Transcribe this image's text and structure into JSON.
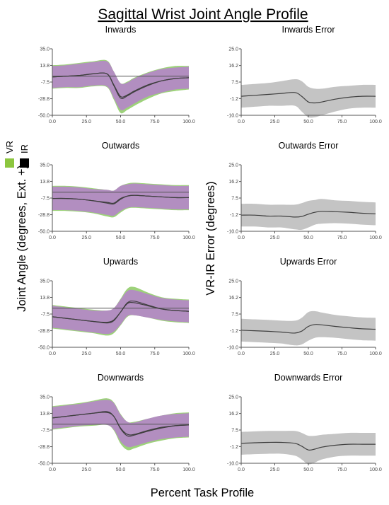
{
  "figure": {
    "title": "Sagittal Wrist Joint Angle Profile",
    "xlabel": "Percent Task Profile",
    "ylabel_left": "Joint Angle (degrees, Ext. +)",
    "ylabel_right": "VR-IR Error (degrees)",
    "legend": [
      {
        "label": "VR",
        "color": "#8cc63f"
      },
      {
        "label": "IR",
        "color": "#000000"
      }
    ]
  },
  "colors": {
    "vr_band": "#9dd27a",
    "ir_band": "#b28ec0",
    "error_band": "#c4c4c4",
    "mean_line": "#3f3f3f",
    "zero_line": "#555555",
    "axis": "#555555"
  },
  "chart_data": [
    {
      "type": "area",
      "title": "Inwards",
      "xlim": [
        0,
        100
      ],
      "ylim": [
        -50,
        35
      ],
      "xticks": [
        "0.0",
        "25.0",
        "50.0",
        "75.0",
        "100.0"
      ],
      "yticks": [
        "35.0",
        "13.8",
        "-7.5",
        "-28.8",
        "-50.0"
      ],
      "x": [
        0,
        10,
        20,
        30,
        40,
        45,
        50,
        55,
        60,
        70,
        80,
        90,
        100
      ],
      "series": [
        {
          "name": "VR",
          "mean": [
            -1,
            0,
            1,
            3,
            3,
            -12,
            -28,
            -25,
            -20,
            -12,
            -6,
            -3,
            -2
          ],
          "sd": [
            15,
            15,
            16,
            16,
            17,
            18,
            19,
            18,
            18,
            17,
            16,
            16,
            15
          ]
        },
        {
          "name": "IR",
          "mean": [
            -1,
            0,
            1,
            3,
            3,
            -11,
            -26,
            -24,
            -19,
            -11,
            -6,
            -3,
            -2
          ],
          "sd": [
            14,
            14,
            15,
            15,
            16,
            17,
            17,
            16,
            16,
            15,
            15,
            14,
            14
          ]
        }
      ]
    },
    {
      "type": "area",
      "title": "Inwards Error",
      "xlim": [
        0,
        100
      ],
      "ylim": [
        -10,
        25
      ],
      "xticks": [
        "0.0",
        "25.0",
        "50.0",
        "75.0",
        "100.0"
      ],
      "yticks": [
        "25.0",
        "16.2",
        "7.5",
        "-1.2",
        "-10.0"
      ],
      "x": [
        0,
        10,
        20,
        30,
        40,
        45,
        50,
        55,
        60,
        70,
        80,
        90,
        100
      ],
      "series": [
        {
          "name": "Error",
          "mean": [
            0,
            0.5,
            1,
            1.5,
            2,
            0,
            -3,
            -3.5,
            -3,
            -1.5,
            -0.5,
            0,
            0
          ],
          "sd": [
            6,
            6,
            6,
            6.5,
            7,
            8,
            8,
            7.5,
            7,
            6.5,
            6,
            6,
            6
          ]
        }
      ]
    },
    {
      "type": "area",
      "title": "Outwards",
      "xlim": [
        0,
        100
      ],
      "ylim": [
        -50,
        35
      ],
      "xticks": [
        "0.0",
        "25.0",
        "50.0",
        "75.0",
        "100.0"
      ],
      "yticks": [
        "35.0",
        "13.8",
        "-7.5",
        "-28.8",
        "-50.0"
      ],
      "x": [
        0,
        10,
        20,
        30,
        40,
        45,
        50,
        55,
        60,
        70,
        80,
        90,
        100
      ],
      "series": [
        {
          "name": "VR",
          "mean": [
            -8,
            -8,
            -9,
            -11,
            -14,
            -15,
            -9,
            -5,
            -4,
            -5,
            -6,
            -7,
            -7
          ],
          "sd": [
            16,
            16,
            16,
            16,
            17,
            17,
            17,
            16,
            16,
            16,
            16,
            16,
            16
          ]
        },
        {
          "name": "IR",
          "mean": [
            -8,
            -8,
            -9,
            -11,
            -13,
            -14,
            -8,
            -5,
            -4,
            -5,
            -6,
            -7,
            -7
          ],
          "sd": [
            15,
            15,
            15,
            15,
            16,
            16,
            16,
            15,
            15,
            15,
            15,
            15,
            15
          ]
        }
      ]
    },
    {
      "type": "area",
      "title": "Outwards Error",
      "xlim": [
        0,
        100
      ],
      "ylim": [
        -10,
        25
      ],
      "xticks": [
        "0.0",
        "25.0",
        "50.0",
        "75.0",
        "100.0"
      ],
      "yticks": [
        "25.0",
        "16.2",
        "7.5",
        "-1.2",
        "-10.0"
      ],
      "x": [
        0,
        10,
        20,
        30,
        40,
        45,
        50,
        55,
        60,
        70,
        80,
        90,
        100
      ],
      "series": [
        {
          "name": "Error",
          "mean": [
            -1.5,
            -1.5,
            -2,
            -2,
            -2.5,
            -2.2,
            -1,
            0,
            0.5,
            0.3,
            0,
            -0.5,
            -0.8
          ],
          "sd": [
            6,
            6,
            6,
            6,
            6.5,
            7,
            7,
            6.5,
            6.5,
            6,
            6,
            6,
            6
          ]
        }
      ]
    },
    {
      "type": "area",
      "title": "Upwards",
      "xlim": [
        0,
        100
      ],
      "ylim": [
        -50,
        35
      ],
      "xticks": [
        "0.0",
        "25.0",
        "50.0",
        "75.0",
        "100.0"
      ],
      "yticks": [
        "35.0",
        "13.8",
        "-7.5",
        "-28.8",
        "-50.0"
      ],
      "x": [
        0,
        10,
        20,
        30,
        40,
        45,
        50,
        55,
        60,
        70,
        80,
        90,
        100
      ],
      "series": [
        {
          "name": "VR",
          "mean": [
            -11,
            -13,
            -15,
            -17,
            -19,
            -16,
            -5,
            7,
            9,
            4,
            -1,
            -3,
            -4
          ],
          "sd": [
            15,
            15,
            15,
            15,
            16,
            16,
            17,
            18,
            18,
            16,
            15,
            15,
            15
          ]
        },
        {
          "name": "IR",
          "mean": [
            -11,
            -13,
            -15,
            -17,
            -18,
            -15,
            -5,
            6,
            7,
            3,
            -1,
            -3,
            -4
          ],
          "sd": [
            14,
            14,
            14,
            14,
            15,
            15,
            16,
            16,
            16,
            15,
            14,
            14,
            14
          ]
        }
      ]
    },
    {
      "type": "area",
      "title": "Upwards Error",
      "xlim": [
        0,
        100
      ],
      "ylim": [
        -10,
        25
      ],
      "xticks": [
        "0.0",
        "25.0",
        "50.0",
        "75.0",
        "100.0"
      ],
      "yticks": [
        "25.0",
        "16.2",
        "7.5",
        "-1.2",
        "-10.0"
      ],
      "x": [
        0,
        10,
        20,
        30,
        40,
        45,
        50,
        55,
        60,
        70,
        80,
        90,
        100
      ],
      "series": [
        {
          "name": "Error",
          "mean": [
            -1,
            -1.3,
            -1.6,
            -2,
            -2.5,
            -1.5,
            1,
            2,
            1.8,
            1,
            0.3,
            -0.3,
            -0.5
          ],
          "sd": [
            6,
            6,
            6,
            6,
            6.5,
            7,
            7.5,
            7,
            6.5,
            6,
            6,
            6,
            6
          ]
        }
      ]
    },
    {
      "type": "area",
      "title": "Downwards",
      "xlim": [
        0,
        100
      ],
      "ylim": [
        -50,
        35
      ],
      "xticks": [
        "0.0",
        "25.0",
        "50.0",
        "75.0",
        "100.0"
      ],
      "yticks": [
        "35.0",
        "13.8",
        "-7.5",
        "-28.8",
        "-50.0"
      ],
      "x": [
        0,
        10,
        20,
        30,
        40,
        45,
        50,
        55,
        60,
        70,
        80,
        90,
        100
      ],
      "series": [
        {
          "name": "VR",
          "mean": [
            8,
            10,
            12,
            14,
            16,
            10,
            -6,
            -15,
            -14,
            -9,
            -5,
            -2,
            -1
          ],
          "sd": [
            15,
            15,
            15,
            16,
            17,
            18,
            19,
            18,
            17,
            16,
            16,
            16,
            16
          ]
        },
        {
          "name": "IR",
          "mean": [
            8,
            10,
            12,
            14,
            15,
            10,
            -5,
            -13,
            -13,
            -8,
            -4,
            -2,
            -1
          ],
          "sd": [
            14,
            14,
            14,
            15,
            16,
            17,
            17,
            16,
            15,
            15,
            15,
            15,
            15
          ]
        }
      ]
    },
    {
      "type": "area",
      "title": "Downwards Error",
      "xlim": [
        0,
        100
      ],
      "ylim": [
        -10,
        25
      ],
      "xticks": [
        "0.0",
        "25.0",
        "50.0",
        "75.0",
        "100.0"
      ],
      "yticks": [
        "25.0",
        "16.2",
        "7.5",
        "-1.2",
        "-10.0"
      ],
      "x": [
        0,
        10,
        20,
        30,
        40,
        45,
        50,
        55,
        60,
        70,
        80,
        90,
        100
      ],
      "series": [
        {
          "name": "Error",
          "mean": [
            0.5,
            0.8,
            1,
            1,
            0.5,
            -1,
            -3,
            -2.5,
            -1.5,
            -0.5,
            0,
            0,
            0
          ],
          "sd": [
            6,
            6,
            6,
            6,
            6.5,
            7,
            7.5,
            7,
            6.5,
            6,
            6,
            6,
            6
          ]
        }
      ]
    }
  ]
}
